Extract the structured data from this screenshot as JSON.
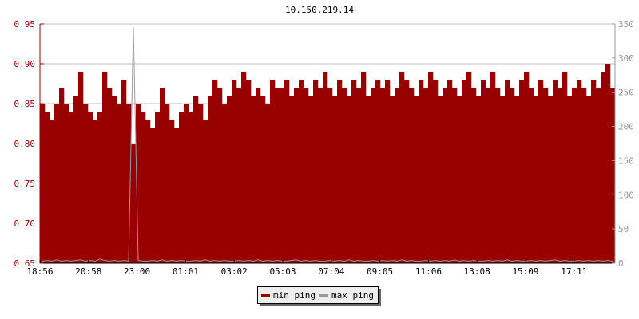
{
  "chart_data": {
    "type": "bar",
    "title": "10.150.219.14",
    "x_tick_labels": [
      "18:56",
      "20:58",
      "23:00",
      "01:01",
      "03:02",
      "05:03",
      "07:04",
      "09:05",
      "11:06",
      "13:08",
      "15:09",
      "17:11"
    ],
    "left_axis": {
      "ylim": [
        0.65,
        0.95
      ],
      "ticks": [
        "0.65",
        "0.70",
        "0.75",
        "0.80",
        "0.85",
        "0.90",
        "0.95"
      ],
      "color": "#990000"
    },
    "right_axis": {
      "ylim": [
        0,
        350
      ],
      "ticks": [
        "0",
        "50",
        "100",
        "150",
        "200",
        "250",
        "300",
        "350"
      ],
      "color": "#999999"
    },
    "grid": true,
    "legend_position": "bottom",
    "series": [
      {
        "name": "min ping",
        "axis": "left",
        "color": "#990000",
        "values": [
          0.85,
          0.84,
          0.83,
          0.85,
          0.87,
          0.85,
          0.84,
          0.86,
          0.89,
          0.85,
          0.84,
          0.83,
          0.84,
          0.89,
          0.87,
          0.86,
          0.85,
          0.88,
          0.85,
          0.8,
          0.85,
          0.84,
          0.83,
          0.82,
          0.84,
          0.87,
          0.85,
          0.83,
          0.82,
          0.84,
          0.85,
          0.84,
          0.86,
          0.85,
          0.83,
          0.86,
          0.88,
          0.87,
          0.85,
          0.86,
          0.88,
          0.87,
          0.89,
          0.88,
          0.86,
          0.87,
          0.86,
          0.85,
          0.88,
          0.87,
          0.87,
          0.88,
          0.86,
          0.87,
          0.88,
          0.87,
          0.86,
          0.88,
          0.87,
          0.89,
          0.87,
          0.86,
          0.88,
          0.87,
          0.86,
          0.88,
          0.87,
          0.89,
          0.86,
          0.87,
          0.88,
          0.87,
          0.88,
          0.86,
          0.87,
          0.89,
          0.88,
          0.87,
          0.86,
          0.88,
          0.87,
          0.89,
          0.88,
          0.86,
          0.87,
          0.88,
          0.87,
          0.86,
          0.88,
          0.89,
          0.87,
          0.86,
          0.88,
          0.87,
          0.89,
          0.87,
          0.86,
          0.88,
          0.87,
          0.86,
          0.88,
          0.89,
          0.87,
          0.86,
          0.88,
          0.87,
          0.86,
          0.88,
          0.87,
          0.89,
          0.86,
          0.87,
          0.88,
          0.87,
          0.86,
          0.88,
          0.87,
          0.89,
          0.9,
          0.87
        ]
      },
      {
        "name": "max ping",
        "axis": "right",
        "color": "#999999",
        "values": [
          3,
          4,
          3,
          5,
          3,
          4,
          3,
          4,
          5,
          3,
          4,
          3,
          6,
          4,
          3,
          4,
          3,
          4,
          3,
          345,
          4,
          3,
          3,
          4,
          3,
          5,
          3,
          4,
          3,
          4,
          3,
          3,
          4,
          3,
          5,
          3,
          4,
          3,
          4,
          3,
          3,
          4,
          3,
          4,
          3,
          5,
          3,
          4,
          3,
          4,
          3,
          3,
          4,
          5,
          3,
          4,
          3,
          4,
          3,
          3,
          4,
          3,
          4,
          3,
          5,
          3,
          4,
          3,
          3,
          4,
          3,
          4,
          3,
          4,
          3,
          5,
          3,
          4,
          3,
          3,
          4,
          3,
          4,
          3,
          4,
          3,
          5,
          3,
          4,
          3,
          4,
          3,
          3,
          4,
          3,
          4,
          3,
          5,
          3,
          4,
          3,
          3,
          4,
          3,
          4,
          3,
          4,
          5,
          3,
          4,
          3,
          3,
          4,
          3,
          4,
          3,
          4,
          3,
          4,
          3
        ]
      }
    ]
  }
}
